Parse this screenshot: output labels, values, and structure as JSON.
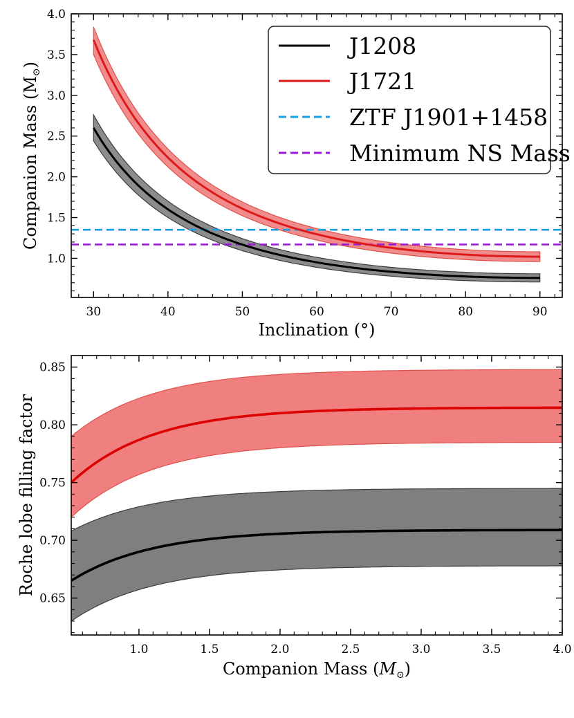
{
  "chart_data": [
    {
      "type": "line",
      "title": "",
      "xlabel": "Inclination (°)",
      "ylabel": "Companion Mass (M",
      "ylabel_sub": "⊙",
      "ylabel_close": ")",
      "xlim": [
        27,
        93
      ],
      "ylim": [
        0.52,
        4.0
      ],
      "xticks": [
        30,
        40,
        50,
        60,
        70,
        80,
        90
      ],
      "yticks": [
        1.0,
        1.5,
        2.0,
        2.5,
        3.0,
        3.5,
        4.0
      ],
      "xtick_labels": [
        "30",
        "40",
        "50",
        "60",
        "70",
        "80",
        "90"
      ],
      "ytick_labels": [
        "1.0",
        "1.5",
        "2.0",
        "2.5",
        "3.0",
        "3.5",
        "4.0"
      ],
      "series": [
        {
          "name": "J1208",
          "color": "#000000",
          "band_color": "#7f7f7f",
          "band_edge": "#3c3c3c",
          "x": [
            30,
            90
          ],
          "center_at_90": 0.76,
          "center_at_30": 2.6,
          "upper_at_90": 0.81,
          "upper_at_30": 2.76,
          "lower_at_90": 0.71,
          "lower_at_30": 2.44
        },
        {
          "name": "J1721",
          "color": "#dd1a1a",
          "band_color": "#f08080",
          "band_edge": "#e0504a",
          "x": [
            30,
            90
          ],
          "center_at_90": 1.02,
          "center_at_30": 3.68,
          "upper_at_90": 1.08,
          "upper_at_30": 3.84,
          "lower_at_90": 0.96,
          "lower_at_30": 3.5
        }
      ],
      "hlines": [
        {
          "name": "ZTF J1901+1458",
          "y": 1.35,
          "color": "#1a9ee0"
        },
        {
          "name": "Minimum NS Mass",
          "y": 1.17,
          "color": "#9a1ad6"
        }
      ],
      "legend": {
        "position": "top-right",
        "entries": [
          "J1208",
          "J1721",
          "ZTF J1901+1458",
          "Minimum NS Mass"
        ]
      }
    },
    {
      "type": "line",
      "title": "",
      "xlabel": "Companion Mass (",
      "xlabel_m": "M",
      "xlabel_sub": "⊙",
      "xlabel_close": ")",
      "ylabel": "Roche lobe filling factor",
      "xlim": [
        0.52,
        4.0
      ],
      "ylim": [
        0.618,
        0.86
      ],
      "xticks": [
        1.0,
        1.5,
        2.0,
        2.5,
        3.0,
        3.5,
        4.0
      ],
      "yticks": [
        0.65,
        0.7,
        0.75,
        0.8,
        0.85
      ],
      "xtick_labels": [
        "1.0",
        "1.5",
        "2.0",
        "2.5",
        "3.0",
        "3.5",
        "4.0"
      ],
      "ytick_labels": [
        "0.65",
        "0.70",
        "0.75",
        "0.80",
        "0.85"
      ],
      "series": [
        {
          "name": "J1721",
          "color": "#dd0000",
          "band_color": "#f08080",
          "band_edge": "#e0504a",
          "x_start": 0.52,
          "center_start": 0.75,
          "center_end": 0.815,
          "upper_start": 0.79,
          "upper_end": 0.848,
          "lower_start": 0.72,
          "lower_end": 0.785
        },
        {
          "name": "J1208",
          "color": "#000000",
          "band_color": "#7f7f7f",
          "band_edge": "#3c3c3c",
          "x_start": 0.52,
          "center_start": 0.665,
          "center_end": 0.709,
          "upper_start": 0.708,
          "upper_end": 0.745,
          "lower_start": 0.63,
          "lower_end": 0.678
        }
      ]
    }
  ]
}
